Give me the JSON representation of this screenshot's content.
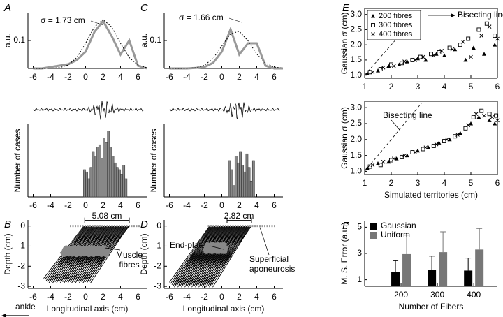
{
  "chart_data": [
    {
      "type": "line",
      "panel": "A",
      "ylabel": "a.u.",
      "annotations": [
        "σ = 1.73 cm"
      ],
      "x": [
        -6,
        -5,
        -4,
        -3,
        -2,
        -1,
        0,
        1,
        2,
        3,
        4,
        5,
        6,
        7
      ],
      "series": [
        {
          "color": "#999999",
          "values": [
            0,
            0,
            0.005,
            0.01,
            0.015,
            0.03,
            0.06,
            0.13,
            0.17,
            0.115,
            0.05,
            0.1,
            0.01,
            0
          ]
        },
        {
          "color": "#000000",
          "dash": true,
          "values": [
            0,
            0,
            0.0004,
            0.0027,
            0.012,
            0.039,
            0.09,
            0.148,
            0.175,
            0.148,
            0.09,
            0.039,
            0.012,
            0.0027
          ]
        }
      ],
      "xlim": [
        -6.6,
        7
      ],
      "xticks": [
        -6,
        -4,
        -2,
        0,
        2,
        4,
        6
      ],
      "ylim": [
        0,
        0.2
      ],
      "yticks": [
        0.1
      ]
    },
    {
      "type": "histogram",
      "ylabel": "Number of cases",
      "color": "#888888",
      "bins": [
        -0.25,
        0,
        0.25,
        0.5,
        0.75,
        1,
        1.25,
        1.5,
        1.75,
        2,
        2.25,
        2.5,
        2.75,
        3,
        3.25,
        3.5,
        3.75,
        4,
        4.25,
        4.5,
        4.75
      ],
      "values": [
        12,
        11,
        8,
        13,
        20,
        18,
        22,
        23,
        17,
        26,
        24,
        29,
        22,
        18,
        15,
        13,
        12,
        10,
        14,
        8
      ],
      "xlim": [
        -6.6,
        7
      ],
      "xticks": [
        -6,
        -4,
        -2,
        0,
        2,
        4,
        6
      ],
      "ylim": [
        0,
        32
      ],
      "yticks": []
    },
    {
      "type": "fibres",
      "panel": "B",
      "xlabel": "Longitudinal axis (cm)",
      "ylabel": "Depth (cm)",
      "annotations": [
        "5.08 cm",
        "Muscle",
        "fibres"
      ],
      "xlim": [
        -6.6,
        7
      ],
      "xticks": [
        -6,
        -4,
        -2,
        0,
        2,
        4,
        6
      ],
      "ylim": [
        -3.1,
        0.3
      ],
      "yticks": [
        0,
        -1,
        -2,
        -3
      ]
    },
    {
      "type": "line",
      "panel": "C",
      "ylabel": "a.u.",
      "annotations": [
        "σ = 1.66 cm"
      ],
      "x": [
        -6,
        -5,
        -4,
        -3,
        -2,
        -1,
        0,
        1,
        2,
        3,
        4,
        5,
        6,
        7
      ],
      "series": [
        {
          "color": "#999999",
          "values": [
            0,
            0,
            0,
            0.002,
            0.005,
            0.02,
            0.06,
            0.14,
            0.05,
            0.09,
            0.09,
            0.01,
            0,
            0
          ]
        },
        {
          "color": "#000000",
          "dash": true,
          "values": [
            0,
            0,
            0.0004,
            0.0025,
            0.011,
            0.036,
            0.08,
            0.124,
            0.133,
            0.099,
            0.052,
            0.019,
            0.0047,
            0.0008
          ]
        }
      ],
      "xlim": [
        -6.6,
        7
      ],
      "xticks": [
        -6,
        -4,
        -2,
        0,
        2,
        4,
        6
      ],
      "ylim": [
        0,
        0.2
      ],
      "yticks": [
        0.1
      ]
    },
    {
      "type": "histogram",
      "ylabel": "Number of cases",
      "color": "#888888",
      "bins": [
        0.75,
        1,
        1.25,
        1.5,
        1.75,
        2,
        2.25,
        2.5,
        2.75,
        3,
        3.25,
        3.5,
        3.75
      ],
      "values": [
        16,
        12,
        5,
        18,
        15,
        20,
        14,
        11,
        19,
        13,
        7,
        16
      ],
      "xlim": [
        -6.6,
        7
      ],
      "xticks": [
        -6,
        -4,
        -2,
        0,
        2,
        4,
        6
      ],
      "ylim": [
        0,
        32
      ],
      "yticks": []
    },
    {
      "type": "fibres",
      "panel": "D",
      "xlabel": "Longitudinal axis (cm)",
      "ylabel": "Depth (cm)",
      "annotations": [
        "2.82 cm",
        "End-plates",
        "Superficial",
        "aponeurosis"
      ],
      "xlim": [
        -6.6,
        7
      ],
      "xticks": [
        -6,
        -4,
        -2,
        0,
        2,
        4,
        6
      ],
      "ylim": [
        -3.1,
        0.3
      ],
      "yticks": [
        0,
        -1,
        -2,
        -3
      ]
    },
    {
      "type": "scatter",
      "panel": "E",
      "ylabel": "Gaussian σ (cm)",
      "annotations": [
        "Bisecting line"
      ],
      "frame": true,
      "diagonal": true,
      "legend": "upper left",
      "series": [
        {
          "name": "200 fibres",
          "marker": "triangle",
          "color": "#000000",
          "x": [
            1.1,
            1.5,
            1.9,
            2.3,
            2.6,
            3.0,
            3.3,
            3.7,
            4.0,
            4.4,
            4.8,
            5.1,
            5.5,
            5.9
          ],
          "values": [
            1.05,
            1.15,
            1.3,
            1.35,
            1.45,
            1.55,
            1.5,
            1.7,
            1.65,
            1.85,
            1.5,
            1.9,
            1.7,
            2.0
          ]
        },
        {
          "name": "300 fibres",
          "marker": "square",
          "color": "#000000",
          "x": [
            1.2,
            1.6,
            2.0,
            2.4,
            2.8,
            3.1,
            3.5,
            3.8,
            4.2,
            4.6,
            4.9,
            5.3,
            5.6,
            5.9
          ],
          "values": [
            1.1,
            1.2,
            1.35,
            1.4,
            1.5,
            1.6,
            1.7,
            1.75,
            1.9,
            2.0,
            2.2,
            2.5,
            2.7,
            2.3
          ]
        },
        {
          "name": "400 fibres",
          "marker": "cross",
          "color": "#000000",
          "x": [
            1.3,
            1.7,
            2.1,
            2.5,
            2.9,
            3.2,
            3.6,
            3.9,
            4.3,
            4.7,
            5.0,
            5.4,
            5.7,
            6.0
          ],
          "values": [
            1.1,
            1.25,
            1.3,
            1.45,
            1.5,
            1.6,
            1.65,
            1.8,
            1.85,
            2.1,
            1.6,
            2.3,
            2.6,
            2.2
          ]
        }
      ],
      "xlim": [
        1,
        6
      ],
      "xticks": [
        1,
        2,
        3,
        4,
        5,
        6
      ],
      "ylim": [
        0.9,
        3.2
      ],
      "yticks": [
        {
          "value": 1,
          "label": "1.0"
        },
        {
          "value": 1.5,
          "label": "1.5"
        },
        {
          "value": 2,
          "label": "2.0"
        },
        {
          "value": 2.5,
          "label": "2.5"
        },
        {
          "value": 3,
          "label": "3.0"
        }
      ]
    },
    {
      "type": "scatter",
      "xlabel": "Simulated territories (cm)",
      "ylabel": "Gaussian σ (cm)",
      "annotations": [
        "Bisecting line"
      ],
      "frame": true,
      "diagonal": true,
      "series": [
        {
          "marker": "triangle",
          "color": "#000000",
          "x": [
            1.1,
            1.5,
            1.9,
            2.2,
            2.6,
            3.0,
            3.4,
            3.8,
            4.2,
            4.6,
            5.0,
            5.3,
            5.7,
            5.9
          ],
          "values": [
            1.1,
            1.25,
            1.3,
            1.4,
            1.5,
            1.65,
            1.75,
            1.9,
            2.0,
            2.2,
            2.5,
            2.7,
            2.6,
            2.5
          ]
        },
        {
          "marker": "square",
          "color": "#000000",
          "x": [
            1.2,
            1.6,
            2.0,
            2.4,
            2.8,
            3.2,
            3.6,
            4.0,
            4.4,
            4.8,
            5.1,
            5.4,
            5.7,
            5.95
          ],
          "values": [
            1.15,
            1.2,
            1.35,
            1.45,
            1.6,
            1.7,
            1.8,
            1.95,
            2.1,
            2.35,
            2.7,
            2.9,
            2.8,
            2.75
          ]
        },
        {
          "marker": "cross",
          "color": "#000000",
          "x": [
            1.3,
            1.7,
            2.1,
            2.5,
            2.9,
            3.3,
            3.7,
            4.1,
            4.5,
            4.9,
            5.2,
            5.5,
            5.8,
            6.0
          ],
          "values": [
            1.2,
            1.3,
            1.4,
            1.5,
            1.6,
            1.75,
            1.85,
            2.0,
            2.15,
            2.45,
            2.8,
            2.75,
            2.7,
            2.6
          ]
        }
      ],
      "xlim": [
        1,
        6
      ],
      "xticks": [
        1,
        2,
        3,
        4,
        5,
        6
      ],
      "ylim": [
        0.9,
        3.2
      ],
      "yticks": [
        {
          "value": 1,
          "label": "1.0"
        },
        {
          "value": 1.5,
          "label": "1.5"
        },
        {
          "value": 2,
          "label": "2.0"
        },
        {
          "value": 2.5,
          "label": "2.5"
        },
        {
          "value": 3,
          "label": "3.0"
        }
      ]
    },
    {
      "type": "bar",
      "panel": "F",
      "xlabel": "Number of Fibers",
      "ylabel": "M. S. Error (a.u.)",
      "legend": "upper left",
      "categories": [
        "200",
        "300",
        "400"
      ],
      "series": [
        {
          "name": "Gaussian",
          "color": "#000000",
          "values": [
            1.6,
            1.75,
            1.7
          ],
          "errors": [
            0.85,
            1.05,
            0.95
          ]
        },
        {
          "name": "Uniform",
          "color": "#777777",
          "values": [
            2.95,
            3.1,
            3.3
          ],
          "errors": [
            1.45,
            1.55,
            1.6
          ]
        }
      ],
      "ylim": [
        0.5,
        5.5
      ],
      "yticks": [
        1,
        3,
        5
      ]
    }
  ],
  "footer_label": "ankle"
}
